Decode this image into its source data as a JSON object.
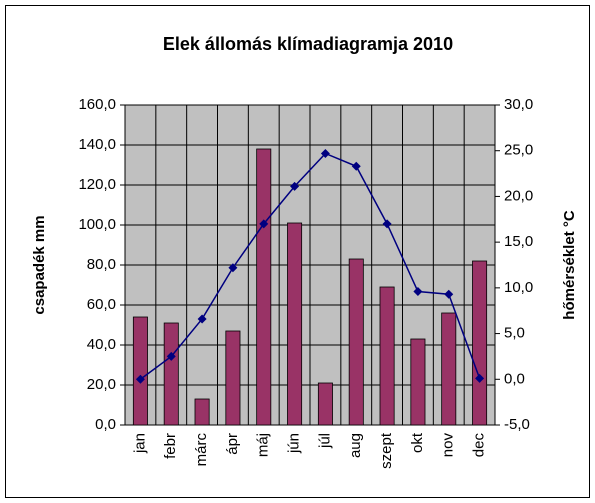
{
  "chart_data": {
    "type": "bar-line",
    "title": "Elek állomás klímadiagramja 2010",
    "y_label": "csapadék mm",
    "y2_label": "hőmérséklet °C",
    "categories": [
      "jan",
      "febr",
      "márc",
      "ápr",
      "máj",
      "jún",
      "júl",
      "aug",
      "szept",
      "okt",
      "nov",
      "dec"
    ],
    "series": [
      {
        "name": "csapadék",
        "type": "bar",
        "color": "#993366",
        "values": [
          54,
          51,
          13,
          47,
          138,
          101,
          21,
          83,
          69,
          43,
          56,
          82
        ]
      },
      {
        "name": "hőmérséklet",
        "type": "line",
        "axis": "y2",
        "color": "#000080",
        "values": [
          0,
          2.5,
          6.6,
          12.2,
          17,
          21.1,
          24.7,
          23.3,
          17,
          9.6,
          9.3,
          0.1
        ]
      }
    ],
    "ylim": [
      0,
      160
    ],
    "yticks": [
      {
        "value": 0,
        "label": "0,0"
      },
      {
        "value": 20,
        "label": "20,0"
      },
      {
        "value": 40,
        "label": "40,0"
      },
      {
        "value": 60,
        "label": "60,0"
      },
      {
        "value": 80,
        "label": "80,0"
      },
      {
        "value": 100,
        "label": "100,0"
      },
      {
        "value": 120,
        "label": "120,0"
      },
      {
        "value": 140,
        "label": "140,0"
      },
      {
        "value": 160,
        "label": "160,0"
      }
    ],
    "y2lim": [
      -5,
      30
    ],
    "y2ticks": [
      {
        "value": -5,
        "label": "-5,0"
      },
      {
        "value": 0,
        "label": "0,0"
      },
      {
        "value": 5,
        "label": "5,0"
      },
      {
        "value": 10,
        "label": "10,0"
      },
      {
        "value": 15,
        "label": "15,0"
      },
      {
        "value": 20,
        "label": "20,0"
      },
      {
        "value": 25,
        "label": "25,0"
      },
      {
        "value": 30,
        "label": "30,0"
      }
    ],
    "grid": true,
    "plot_background": "#c0c0c0"
  }
}
